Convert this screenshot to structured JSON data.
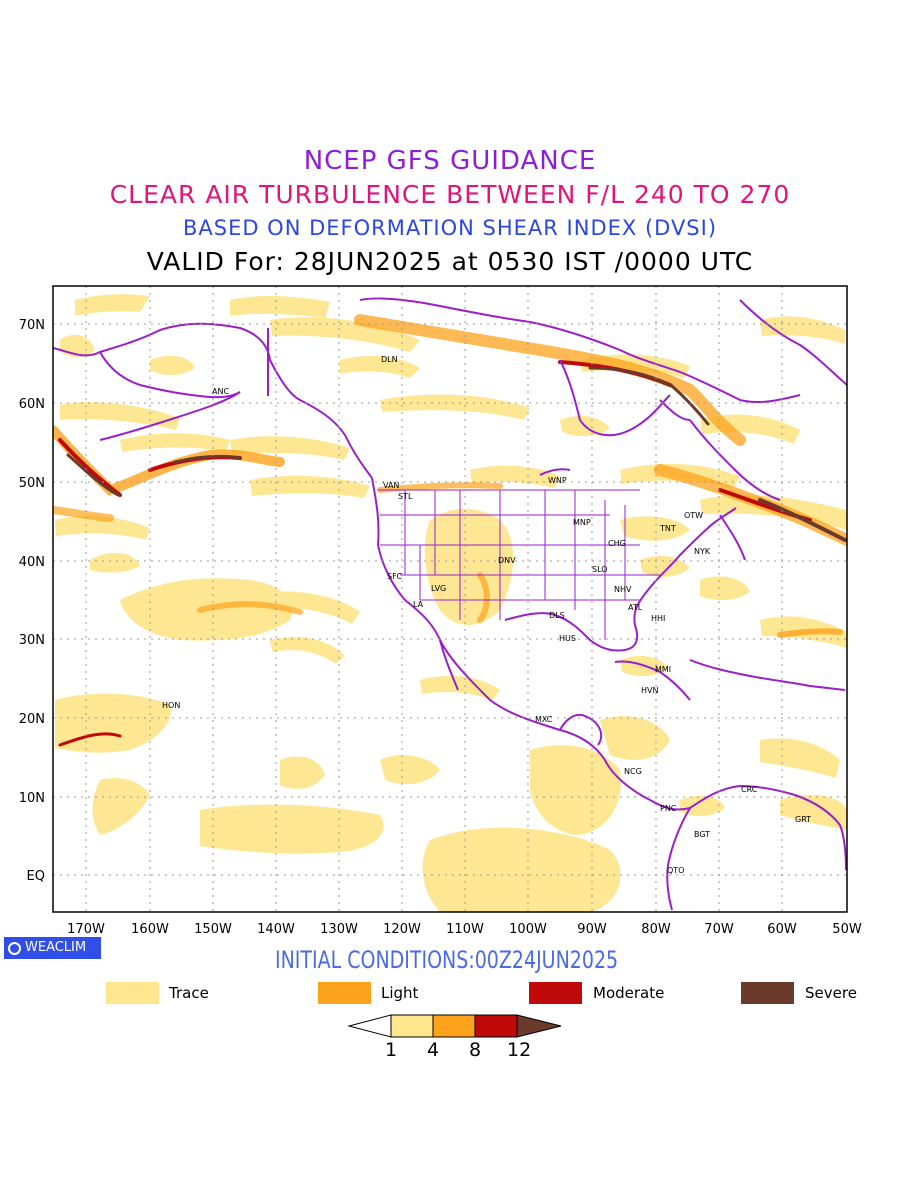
{
  "titles": {
    "line1": "NCEP GFS GUIDANCE",
    "line2": "CLEAR AIR TURBULENCE BETWEEN F/L 240 TO 270",
    "line3": "BASED ON DEFORMATION SHEAR INDEX (DVSI)",
    "line4": "VALID For: 28JUN2025 at 0530 IST /0000 UTC"
  },
  "axes": {
    "lon_labels": [
      "170W",
      "160W",
      "150W",
      "140W",
      "130W",
      "120W",
      "110W",
      "100W",
      "90W",
      "80W",
      "70W",
      "60W",
      "50W"
    ],
    "lat_labels": [
      "70N",
      "60N",
      "50N",
      "40N",
      "30N",
      "20N",
      "10N",
      "EQ"
    ]
  },
  "stations": [
    {
      "id": "ANC"
    },
    {
      "id": "DLN"
    },
    {
      "id": "VAN"
    },
    {
      "id": "STL"
    },
    {
      "id": "WNP"
    },
    {
      "id": "MNP"
    },
    {
      "id": "TNT"
    },
    {
      "id": "OTW"
    },
    {
      "id": "CHG"
    },
    {
      "id": "NYK"
    },
    {
      "id": "DNV"
    },
    {
      "id": "SFC"
    },
    {
      "id": "SLO"
    },
    {
      "id": "LVG"
    },
    {
      "id": "NHV"
    },
    {
      "id": "LA"
    },
    {
      "id": "ATL"
    },
    {
      "id": "DLS"
    },
    {
      "id": "HHI"
    },
    {
      "id": "HUS"
    },
    {
      "id": "MMI"
    },
    {
      "id": "HVN"
    },
    {
      "id": "HON"
    },
    {
      "id": "MXC"
    },
    {
      "id": "NCG"
    },
    {
      "id": "CRC"
    },
    {
      "id": "PNC"
    },
    {
      "id": "GRT"
    },
    {
      "id": "BGT"
    },
    {
      "id": "QTO"
    }
  ],
  "badge": "WEACLIM",
  "initial_conditions": "INITIAL CONDITIONS:00Z24JUN2025",
  "legend": [
    {
      "label": "Trace",
      "color": "#fee68e"
    },
    {
      "label": "Light",
      "color": "#fca31b"
    },
    {
      "label": "Moderate",
      "color": "#c00a0a"
    },
    {
      "label": "Severe",
      "color": "#6b3a2a"
    }
  ],
  "colorbar": {
    "ticks": [
      "1",
      "4",
      "8",
      "12"
    ],
    "colors": [
      "#ffffff",
      "#fee68e",
      "#fca31b",
      "#c00a0a",
      "#6b3a2a"
    ]
  },
  "colors": {
    "coast": "#9b1fc9",
    "trace": "#fee68e",
    "light": "#fca31b",
    "moderate": "#c00a0a",
    "severe": "#6b3a2a"
  }
}
